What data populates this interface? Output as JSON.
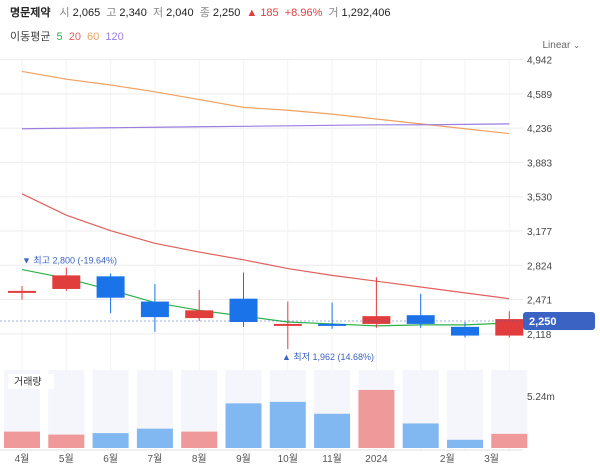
{
  "stock": {
    "name": "명문제약",
    "open_label": "시",
    "open": "2,065",
    "high_label": "고",
    "high": "2,340",
    "low_label": "저",
    "low": "2,040",
    "close_label": "종",
    "close": "2,250",
    "change": "185",
    "change_pct": "+8.96%",
    "volume_label": "거",
    "volume": "1,292,406"
  },
  "ma_legend": {
    "title": "이동평균",
    "items": [
      {
        "label": "5",
        "color": "#2db14a"
      },
      {
        "label": "20",
        "color": "#e0605e"
      },
      {
        "label": "60",
        "color": "#f0a060"
      },
      {
        "label": "120",
        "color": "#9a7fe0"
      }
    ]
  },
  "scale_label": "Linear",
  "colors": {
    "up": "#e23d3d",
    "down": "#1a73e8",
    "grid": "#ececec",
    "price_tag": "#3b63c4"
  },
  "chart_data": {
    "type": "candlestick",
    "title": "명문제약",
    "y_ticks": [
      "4,942",
      "4,589",
      "4,236",
      "3,883",
      "3,530",
      "3,177",
      "2,824",
      "2,471",
      "2,118"
    ],
    "y_tick_values": [
      4942,
      4589,
      4236,
      3883,
      3530,
      3177,
      2824,
      2471,
      2118
    ],
    "ylim": [
      1900,
      5020
    ],
    "x_labels": [
      "4월",
      "5월",
      "6월",
      "7월",
      "8월",
      "9월",
      "10월",
      "11월",
      "2024",
      "2월",
      "3월"
    ],
    "candles": [
      {
        "open": 2540,
        "close": 2560,
        "high": 2610,
        "low": 2470,
        "dir": "up"
      },
      {
        "open": 2580,
        "close": 2720,
        "high": 2800,
        "low": 2560,
        "dir": "up"
      },
      {
        "open": 2710,
        "close": 2490,
        "high": 2740,
        "low": 2330,
        "dir": "down"
      },
      {
        "open": 2450,
        "close": 2290,
        "high": 2630,
        "low": 2140,
        "dir": "down"
      },
      {
        "open": 2280,
        "close": 2360,
        "high": 2570,
        "low": 2250,
        "dir": "up"
      },
      {
        "open": 2480,
        "close": 2240,
        "high": 2750,
        "low": 2190,
        "dir": "down"
      },
      {
        "open": 2200,
        "close": 2220,
        "high": 2450,
        "low": 1962,
        "dir": "up"
      },
      {
        "open": 2220,
        "close": 2200,
        "high": 2440,
        "low": 2170,
        "dir": "down"
      },
      {
        "open": 2220,
        "close": 2300,
        "high": 2700,
        "low": 2180,
        "dir": "up"
      },
      {
        "open": 2310,
        "close": 2220,
        "high": 2530,
        "low": 2180,
        "dir": "down"
      },
      {
        "open": 2190,
        "close": 2100,
        "high": 2240,
        "low": 2080,
        "dir": "down"
      },
      {
        "open": 2100,
        "close": 2270,
        "high": 2350,
        "low": 2080,
        "dir": "up"
      }
    ],
    "ma": [
      {
        "name": "5",
        "color": "#2db14a",
        "values": [
          2780,
          2690,
          2570,
          2440,
          2360,
          2300,
          2240,
          2220,
          2200,
          2210,
          2210,
          2230
        ]
      },
      {
        "name": "20",
        "color": "#e0605e",
        "values": [
          3560,
          3340,
          3180,
          3050,
          2960,
          2880,
          2790,
          2720,
          2660,
          2600,
          2540,
          2480
        ]
      },
      {
        "name": "60",
        "color": "#f0a060",
        "values": [
          4820,
          4740,
          4680,
          4610,
          4530,
          4450,
          4420,
          4380,
          4330,
          4280,
          4230,
          4180
        ]
      },
      {
        "name": "120",
        "color": "#9a7fe0",
        "values": [
          4230,
          4235,
          4240,
          4245,
          4250,
          4255,
          4260,
          4265,
          4270,
          4270,
          4275,
          4280
        ]
      }
    ],
    "high_marker": "최고 2,800 (-19.64%)",
    "high_marker_value": 2800,
    "low_marker": "최저 1,962 (14.68%)",
    "low_marker_value": 1962,
    "current_price": "2,250",
    "current_price_value": 2250,
    "volume": {
      "label": "거래량",
      "max_label": "5.24m",
      "max": 5.24,
      "values": [
        1.1,
        0.9,
        1.0,
        1.3,
        1.1,
        3.0,
        3.1,
        2.3,
        3.9,
        1.65,
        0.55,
        0.95
      ],
      "dirs": [
        "up",
        "up",
        "down",
        "down",
        "up",
        "down",
        "down",
        "down",
        "up",
        "down",
        "down",
        "up"
      ]
    }
  }
}
